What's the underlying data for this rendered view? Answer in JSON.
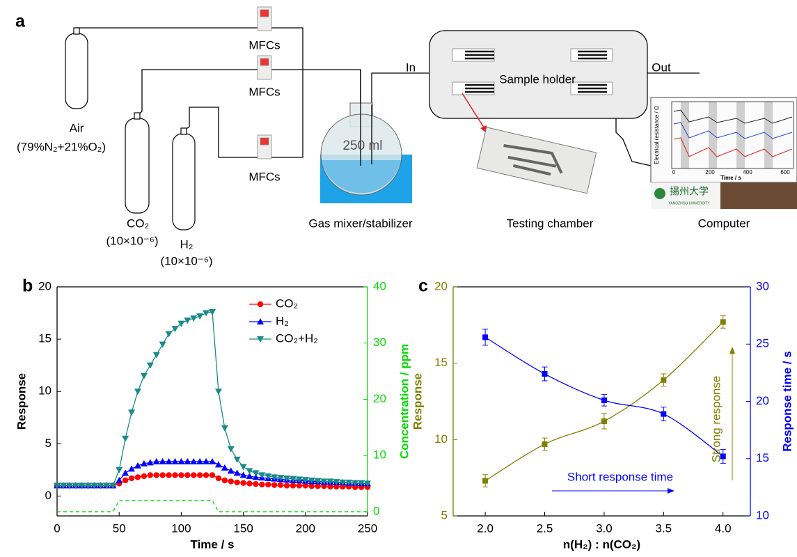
{
  "diagram": {
    "panel": "a",
    "air": {
      "label": "Air",
      "composition": "(79%N₂+21%O₂)"
    },
    "co2": {
      "label": "CO₂",
      "concentration": "(10×10⁻⁶)"
    },
    "h2": {
      "label": "H₂",
      "concentration": "(10×10⁻⁶)"
    },
    "mfcs": [
      "MFCs",
      "MFCs",
      "MFCs"
    ],
    "flask_volume": "250 ml",
    "inlet": "In",
    "outlet": "Out",
    "sample_holder": "Sample holder",
    "captions": [
      "Gas mixer/stabilizer",
      "Testing chamber",
      "Computer"
    ],
    "inset": {
      "ylabel": "Electrical resistance / Ω",
      "xlabel": "Time / s",
      "xticks": [
        "0",
        "200",
        "400",
        "600"
      ],
      "logo": "揚州大学",
      "logo_sub": "YANGZHOU UNIVERSITY"
    }
  },
  "chart_data": [
    {
      "type": "line",
      "panel": "b",
      "xlabel": "Time / s",
      "ylabel": "Response",
      "y2label": "Concentration / ppm",
      "y2color": "#00dd00",
      "x": [
        0,
        5,
        10,
        15,
        20,
        25,
        30,
        35,
        40,
        45,
        50,
        55,
        60,
        65,
        70,
        75,
        80,
        85,
        90,
        95,
        100,
        105,
        110,
        115,
        120,
        125,
        130,
        135,
        140,
        145,
        150,
        155,
        160,
        165,
        170,
        175,
        180,
        185,
        190,
        195,
        200,
        205,
        210,
        215,
        220,
        225,
        230,
        235,
        240,
        245,
        250
      ],
      "xlim": [
        0,
        250
      ],
      "xticks": [
        0,
        50,
        100,
        150,
        200,
        250
      ],
      "ylim": [
        -1.9,
        20
      ],
      "yticks": [
        0,
        5,
        10,
        15,
        20
      ],
      "y2lim": [
        -0.75,
        40
      ],
      "y2ticks": [
        0,
        10,
        20,
        30,
        40
      ],
      "legend": "upper right",
      "series": [
        {
          "name": "CO₂",
          "color": "#ff0000",
          "marker": "circle",
          "values": [
            1.0,
            1.0,
            1.0,
            1.0,
            1.0,
            1.0,
            1.0,
            1.0,
            1.0,
            1.0,
            1.2,
            1.5,
            1.7,
            1.8,
            1.9,
            2.0,
            2.0,
            2.0,
            2.0,
            2.0,
            2.0,
            2.0,
            2.0,
            2.0,
            2.0,
            2.0,
            1.7,
            1.5,
            1.4,
            1.3,
            1.25,
            1.2,
            1.15,
            1.1,
            1.1,
            1.05,
            1.05,
            1.0,
            1.0,
            1.0,
            1.0,
            0.95,
            0.95,
            0.95,
            0.9,
            0.9,
            0.9,
            0.9,
            0.85,
            0.85,
            0.85
          ]
        },
        {
          "name": "H₂",
          "color": "#0000ff",
          "marker": "triangle-up",
          "values": [
            1.0,
            1.0,
            1.0,
            1.0,
            1.0,
            1.0,
            1.0,
            1.0,
            1.0,
            1.0,
            1.5,
            2.2,
            2.6,
            2.9,
            3.1,
            3.2,
            3.3,
            3.3,
            3.3,
            3.3,
            3.3,
            3.3,
            3.3,
            3.3,
            3.3,
            3.3,
            3.0,
            2.7,
            2.4,
            2.2,
            2.0,
            1.9,
            1.8,
            1.75,
            1.7,
            1.65,
            1.6,
            1.55,
            1.5,
            1.5,
            1.45,
            1.4,
            1.4,
            1.35,
            1.35,
            1.3,
            1.3,
            1.25,
            1.25,
            1.2,
            1.2
          ]
        },
        {
          "name": "CO₂+H₂",
          "color": "#1a8a8a",
          "marker": "triangle-down",
          "values": [
            1.0,
            1.0,
            1.0,
            1.0,
            1.0,
            1.0,
            1.0,
            1.0,
            1.0,
            1.0,
            2.5,
            5.5,
            8.0,
            10.0,
            11.5,
            12.5,
            13.5,
            14.5,
            15.5,
            16.0,
            16.5,
            16.8,
            17.0,
            17.2,
            17.5,
            17.6,
            10.0,
            6.5,
            4.5,
            3.5,
            2.8,
            2.4,
            2.2,
            2.0,
            1.9,
            1.8,
            1.75,
            1.7,
            1.65,
            1.6,
            1.55,
            1.5,
            1.45,
            1.4,
            1.4,
            1.35,
            1.3,
            1.3,
            1.25,
            1.25,
            1.2
          ]
        },
        {
          "color": "#00dd00",
          "marker": "none",
          "dashed": true,
          "axis": "y2",
          "values": [
            0,
            0,
            0,
            0,
            0,
            0,
            0,
            0,
            0,
            0,
            2,
            2,
            2,
            2,
            2,
            2,
            2,
            2,
            2,
            2,
            2,
            2,
            2,
            2,
            2,
            2,
            0,
            0,
            0,
            0,
            0,
            0,
            0,
            0,
            0,
            0,
            0,
            0,
            0,
            0,
            0,
            0,
            0,
            0,
            0,
            0,
            0,
            0,
            0,
            0,
            0
          ]
        }
      ]
    },
    {
      "type": "line",
      "panel": "c",
      "xlabel": "n(H₂) : n(CO₂)",
      "ylabel": "Response",
      "y2label": "Response time / s",
      "ycolor": "#808000",
      "y2color": "#0000ff",
      "x": [
        2.0,
        2.5,
        3.0,
        3.5,
        4.0
      ],
      "xlim": [
        1.73,
        4.23
      ],
      "xticks": [
        {
          "value": 2,
          "label": "2.0"
        },
        {
          "value": 2.5,
          "label": "2.5"
        },
        {
          "value": 3,
          "label": "3.0"
        },
        {
          "value": 3.5,
          "label": "3.5"
        },
        {
          "value": 4,
          "label": "4.0"
        }
      ],
      "ylim": [
        5,
        20
      ],
      "yticks": [
        5,
        10,
        15,
        20
      ],
      "y2lim": [
        10,
        30
      ],
      "y2ticks": [
        10,
        15,
        20,
        25,
        30
      ],
      "series": [
        {
          "color": "#808000",
          "marker": "square",
          "smooth": true,
          "values": [
            7.3,
            9.7,
            11.2,
            13.9,
            17.7
          ],
          "errors": [
            0.4,
            0.4,
            0.5,
            0.4,
            0.4
          ]
        },
        {
          "color": "#0000ff",
          "marker": "square",
          "smooth": true,
          "axis": "y2",
          "values": [
            25.6,
            22.4,
            20.1,
            18.9,
            15.2
          ],
          "errors": [
            0.7,
            0.6,
            0.5,
            0.6,
            0.6
          ]
        }
      ],
      "annotations": [
        {
          "text": "Short response time",
          "color": "#0000ff"
        },
        {
          "text": "Strong response",
          "color": "#808000"
        }
      ]
    }
  ]
}
